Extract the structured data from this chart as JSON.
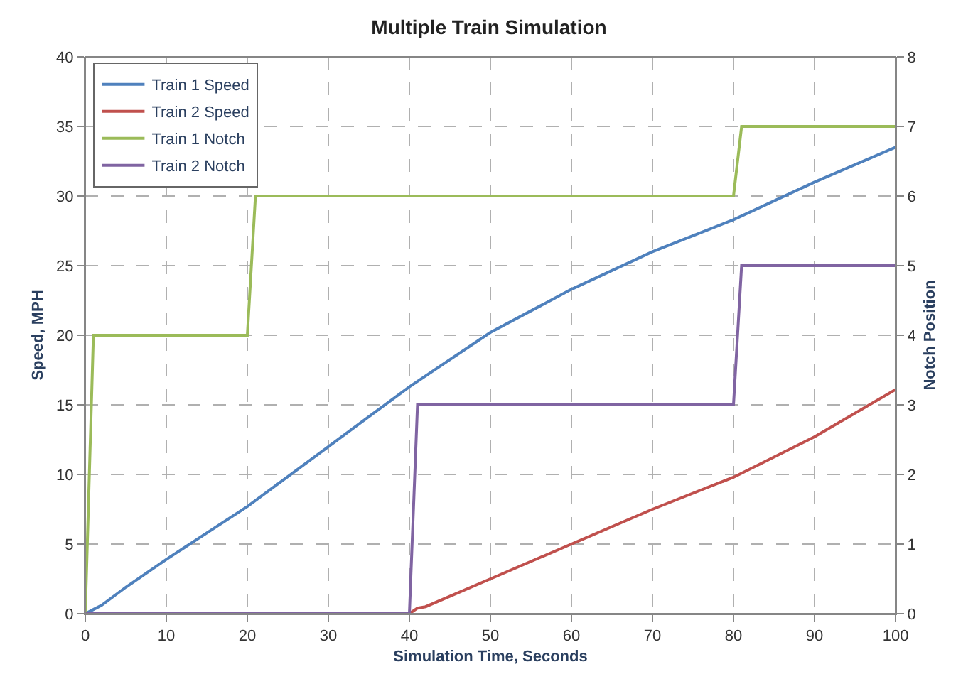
{
  "chart_data": {
    "type": "line",
    "title": "Multiple Train Simulation",
    "xlabel": "Simulation Time, Seconds",
    "ylabel": "Speed, MPH",
    "y2label": "Notch Position",
    "xlim": [
      0,
      100
    ],
    "xticks": [
      0,
      10,
      20,
      30,
      40,
      50,
      60,
      70,
      80,
      90,
      100
    ],
    "ylim": [
      0,
      40
    ],
    "yticks": [
      0,
      5,
      10,
      15,
      20,
      25,
      30,
      35,
      40
    ],
    "y2lim": [
      0,
      8
    ],
    "y2ticks": [
      0,
      1,
      2,
      3,
      4,
      5,
      6,
      7,
      8
    ],
    "grid": true,
    "legend": "top left",
    "marker": "none",
    "line_style": "solid",
    "series": [
      {
        "name": "Train 1 Speed",
        "color": "#4f81bd",
        "x": [
          0,
          1,
          2,
          5,
          10,
          20,
          30,
          40,
          50,
          60,
          70,
          80,
          90,
          100
        ],
        "values": [
          0,
          0.3,
          0.6,
          1.9,
          3.9,
          7.7,
          12,
          16.3,
          20.2,
          23.3,
          26,
          28.3,
          31,
          33.5
        ]
      },
      {
        "name": "Train 2 Speed",
        "color": "#c0504d",
        "x": [
          40,
          41,
          42,
          50,
          60,
          70,
          80,
          90,
          100
        ],
        "values": [
          0,
          0.4,
          0.5,
          2.5,
          5,
          7.5,
          9.8,
          12.7,
          16.1
        ]
      },
      {
        "name": "Train 1 Notch",
        "color": "#9bbb59",
        "axis": "y2",
        "x": [
          0,
          1,
          20,
          21,
          80,
          81,
          100
        ],
        "values": [
          0,
          4,
          4,
          6,
          6,
          7,
          7
        ]
      },
      {
        "name": "Train 2 Notch",
        "color": "#8064a2",
        "axis": "y2",
        "x": [
          0,
          40,
          41,
          80,
          81,
          100
        ],
        "values": [
          0,
          0,
          3,
          3,
          5,
          5
        ]
      }
    ]
  }
}
